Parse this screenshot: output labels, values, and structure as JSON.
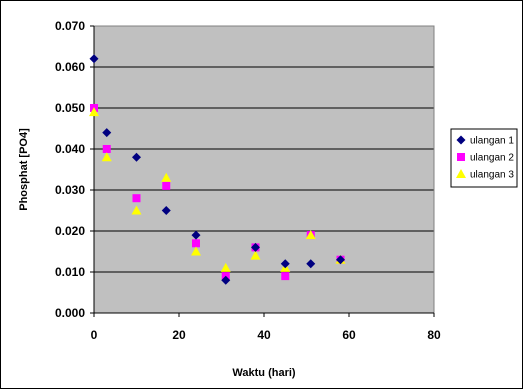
{
  "chart_data": {
    "type": "scatter",
    "title": "",
    "xlabel": "Waktu (hari)",
    "ylabel": "Phosphat [PO4]",
    "xlim": [
      0,
      80
    ],
    "ylim": [
      0,
      0.07
    ],
    "x_ticks": [
      0,
      20,
      40,
      60,
      80
    ],
    "y_ticks": [
      0,
      0.01,
      0.02,
      0.03,
      0.04,
      0.05,
      0.06,
      0.07
    ],
    "x_tick_labels": [
      "0",
      "20",
      "40",
      "60",
      "80"
    ],
    "y_tick_labels": [
      "0.000",
      "0.010",
      "0.020",
      "0.030",
      "0.040",
      "0.050",
      "0.060",
      "0.070"
    ],
    "grid": "horizontal",
    "plot_background": "#c0c0c0",
    "legend_position": "right",
    "series": [
      {
        "name": "ulangan 1",
        "marker": "diamond",
        "color": "#000080",
        "x": [
          0,
          3,
          10,
          17,
          24,
          31,
          38,
          45,
          51,
          58
        ],
        "y": [
          0.062,
          0.044,
          0.038,
          0.025,
          0.019,
          0.008,
          0.016,
          0.012,
          0.012,
          0.013
        ]
      },
      {
        "name": "ulangan 2",
        "marker": "square",
        "color": "#ff00ff",
        "x": [
          0,
          3,
          10,
          17,
          24,
          31,
          38,
          45,
          51,
          58
        ],
        "y": [
          0.05,
          0.04,
          0.028,
          0.031,
          0.017,
          0.009,
          0.016,
          0.009,
          0.019,
          0.013
        ]
      },
      {
        "name": "ulangan 3",
        "marker": "triangle",
        "color": "#ffff00",
        "x": [
          0,
          3,
          10,
          17,
          24,
          31,
          38,
          45,
          51,
          58
        ],
        "y": [
          0.049,
          0.038,
          0.025,
          0.033,
          0.015,
          0.011,
          0.014,
          0.011,
          0.019,
          0.013
        ]
      }
    ]
  }
}
